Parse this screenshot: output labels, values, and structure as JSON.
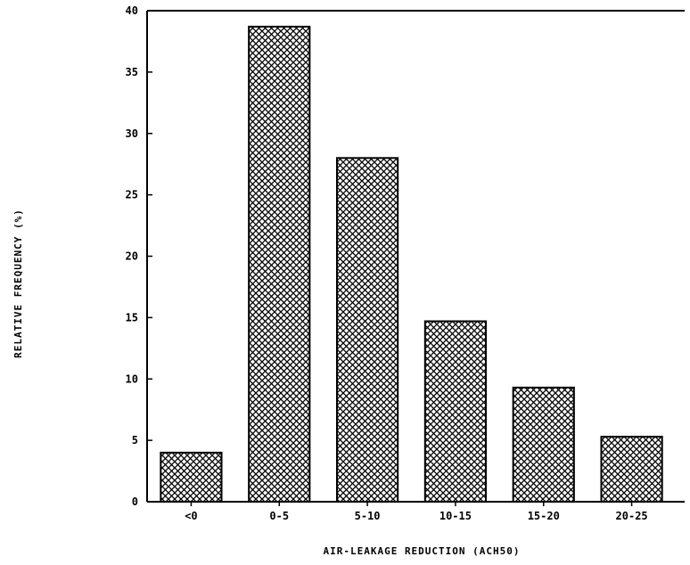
{
  "chart_data": {
    "type": "bar",
    "title": "",
    "xlabel": "AIR-LEAKAGE REDUCTION (ACH50)",
    "ylabel": "RELATIVE FREQUENCY (%)",
    "categories": [
      "<0",
      "0-5",
      "5-10",
      "10-15",
      "15-20",
      "20-25"
    ],
    "values": [
      4,
      38.7,
      28,
      14.7,
      9.3,
      5.3
    ],
    "ylim": [
      0,
      40
    ],
    "yticks": [
      0,
      5,
      10,
      15,
      20,
      25,
      30,
      35,
      40
    ],
    "grid": false,
    "legend": "none",
    "bar_fill": "crosshatch",
    "colors": {
      "bar_stroke": "#000000",
      "hatch": "#000000",
      "background": "#ffffff"
    }
  }
}
